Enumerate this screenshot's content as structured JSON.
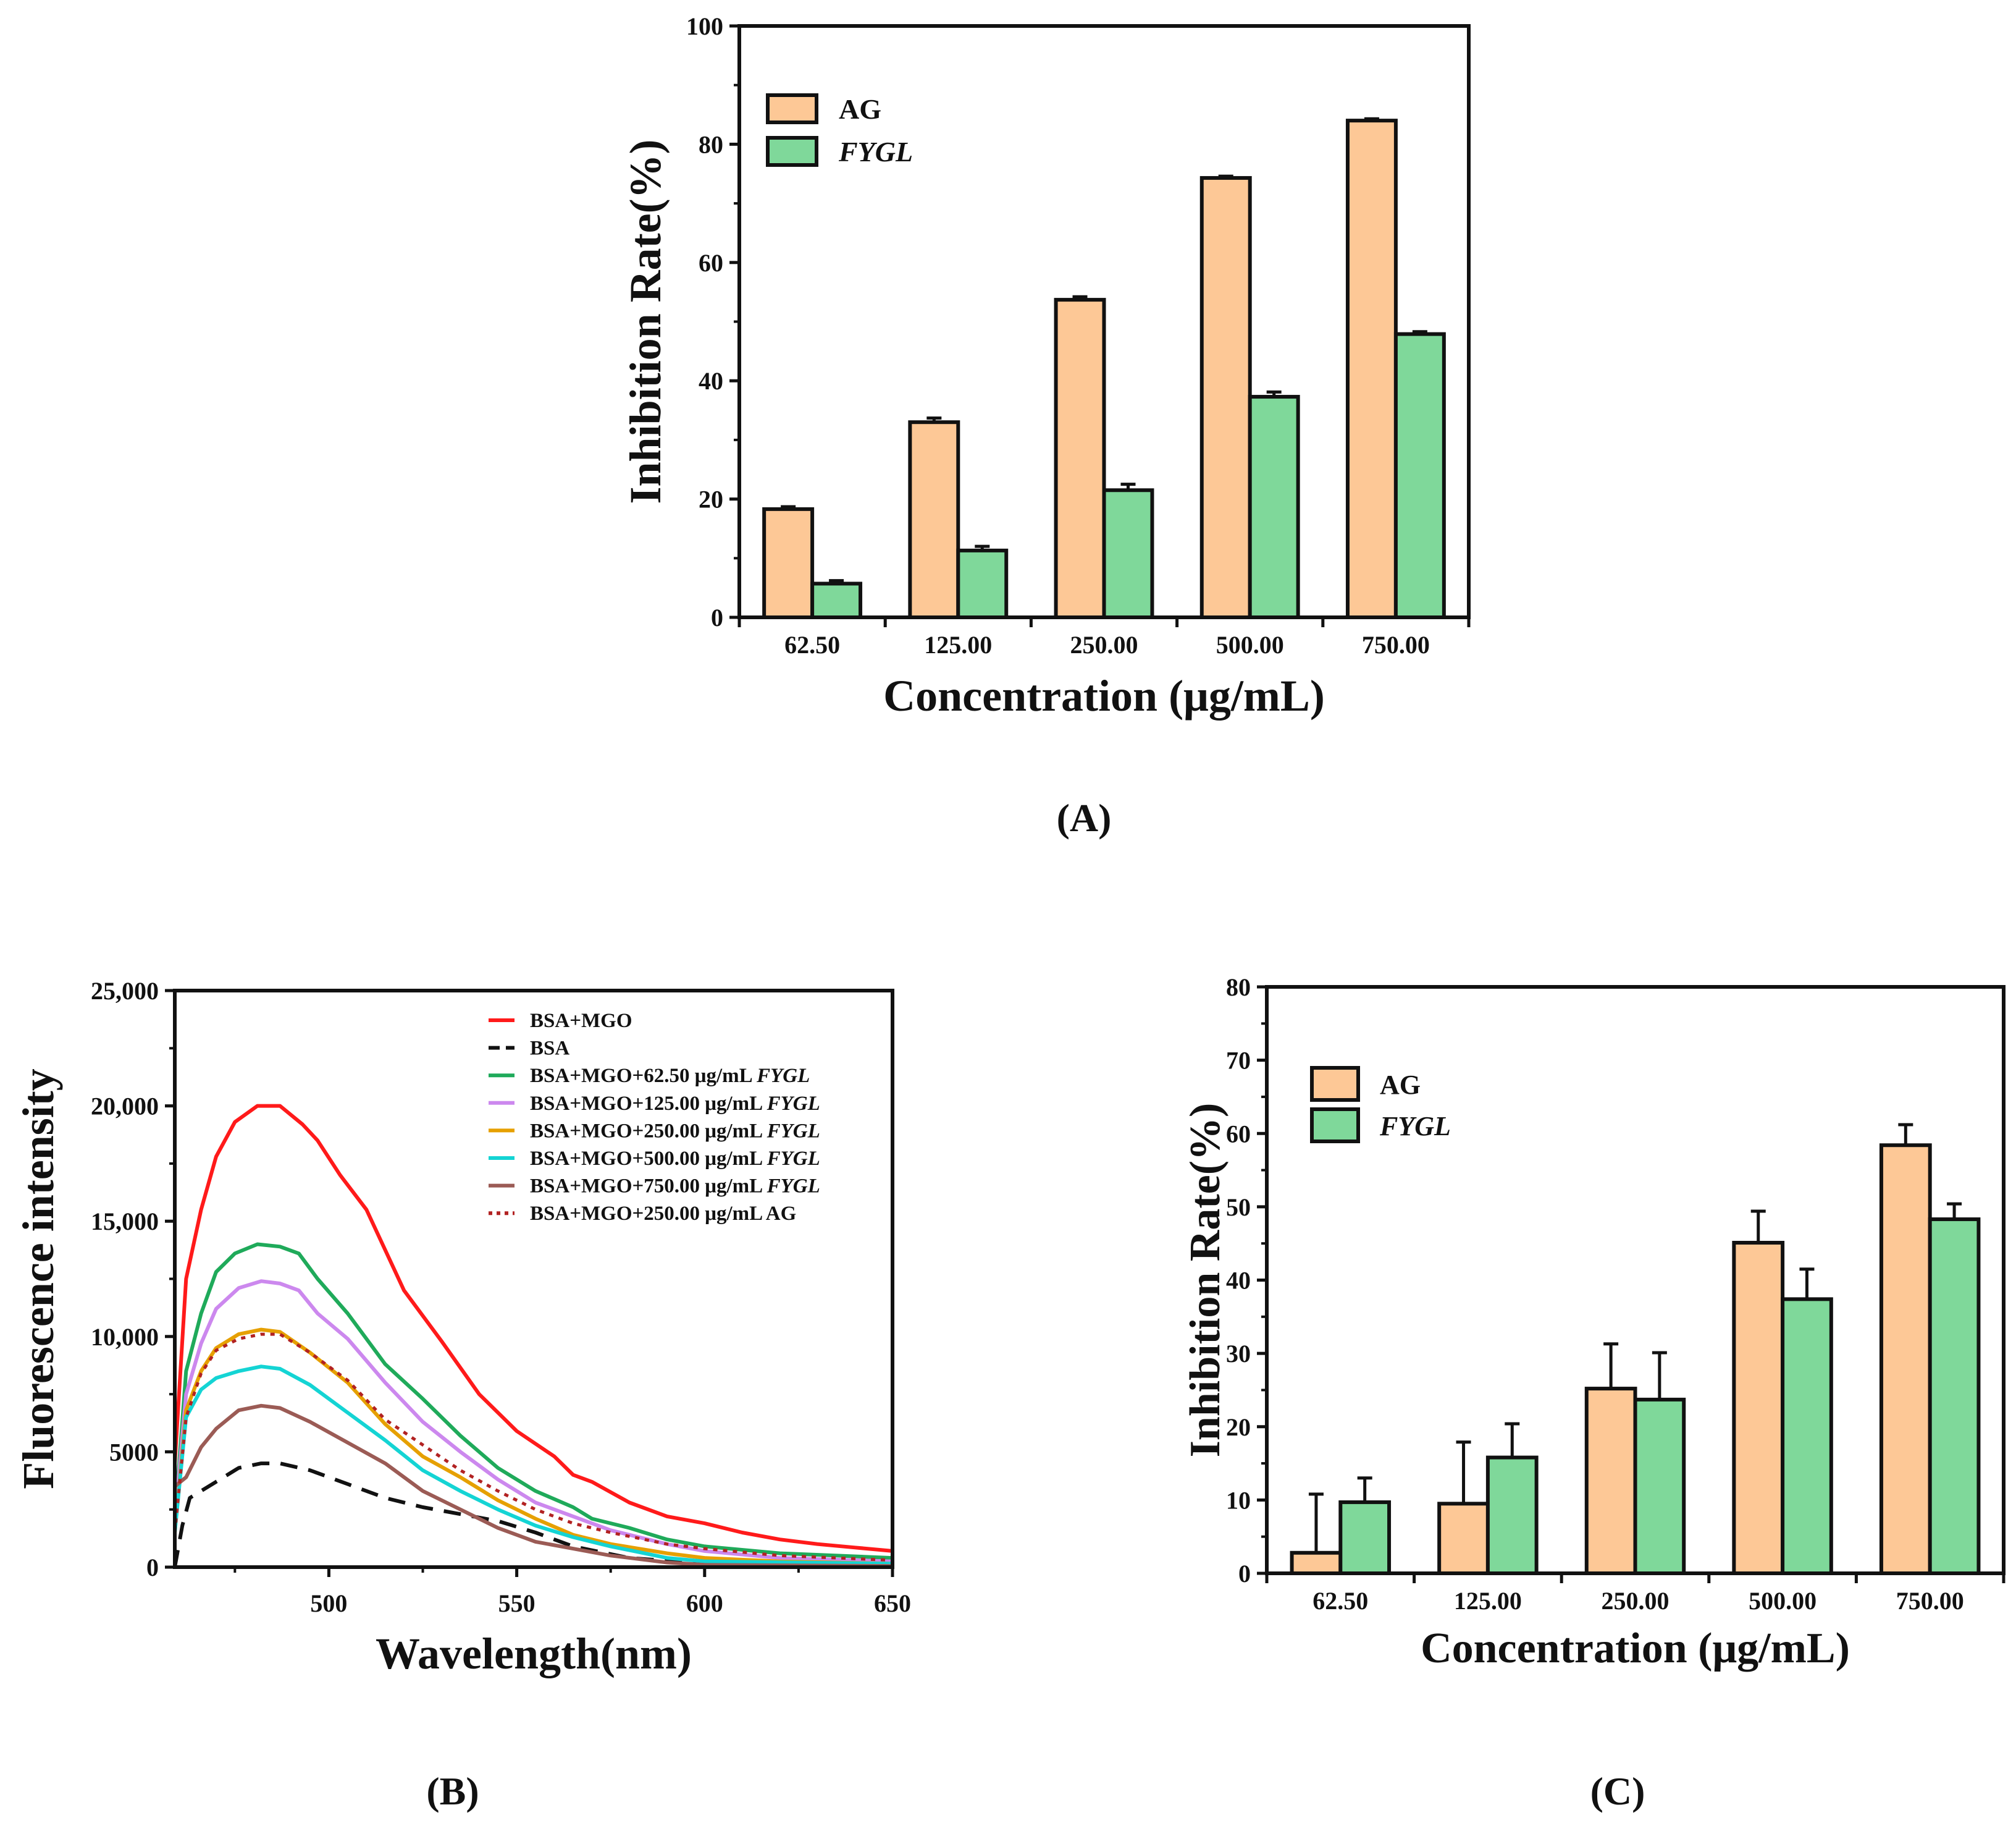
{
  "chart_data": [
    {
      "panel_label": "(A)",
      "type": "bar",
      "categories": [
        "62.50",
        "125.00",
        "250.00",
        "500.00",
        "750.00"
      ],
      "series": [
        {
          "name": "AG",
          "italic": false,
          "color": "#FDC896",
          "values": [
            18.3,
            33.0,
            53.7,
            74.3,
            84.0
          ],
          "errors": [
            0.4,
            0.7,
            0.5,
            0.3,
            0.3
          ]
        },
        {
          "name": "FYGL",
          "italic": true,
          "color": "#7FD89A",
          "values": [
            5.7,
            11.3,
            21.5,
            37.3,
            47.9
          ],
          "errors": [
            0.5,
            0.7,
            1.0,
            0.8,
            0.4
          ]
        }
      ],
      "xlabel": "Concentration (μg/mL)",
      "ylabel": "Inhibition Rate(%)",
      "ylim": [
        0,
        100
      ],
      "yticks": [
        "0",
        "20",
        "40",
        "60",
        "80",
        "100"
      ],
      "legend_position": "top-left"
    },
    {
      "panel_label": "(B)",
      "type": "line",
      "xlabel": "Wavelength(nm)",
      "ylabel": "Fluorescence intensity",
      "xlim": [
        459,
        650
      ],
      "ylim": [
        0,
        25000
      ],
      "xticks": [
        "500",
        "550",
        "600",
        "650"
      ],
      "yticks": [
        "0",
        "5000",
        "10,000",
        "15,000",
        "20,000",
        "25,000"
      ],
      "legend_position": "top-right",
      "series": [
        {
          "name": "BSA+MGO",
          "italic_part": "",
          "color": "#FF1A1A",
          "style": "solid",
          "points": [
            [
              459,
              4500
            ],
            [
              462,
              12500
            ],
            [
              466,
              15500
            ],
            [
              470,
              17800
            ],
            [
              475,
              19300
            ],
            [
              481,
              20000
            ],
            [
              487,
              20000
            ],
            [
              493,
              19200
            ],
            [
              497,
              18500
            ],
            [
              503,
              17000
            ],
            [
              510,
              15500
            ],
            [
              520,
              12000
            ],
            [
              530,
              9800
            ],
            [
              540,
              7500
            ],
            [
              550,
              5900
            ],
            [
              560,
              4800
            ],
            [
              565,
              4000
            ],
            [
              570,
              3700
            ],
            [
              580,
              2800
            ],
            [
              590,
              2200
            ],
            [
              600,
              1900
            ],
            [
              610,
              1500
            ],
            [
              620,
              1200
            ],
            [
              630,
              1000
            ],
            [
              640,
              850
            ],
            [
              650,
              700
            ]
          ]
        },
        {
          "name": "BSA",
          "italic_part": "",
          "color": "#111111",
          "style": "dashed",
          "points": [
            [
              459,
              0
            ],
            [
              461,
              1800
            ],
            [
              463,
              3000
            ],
            [
              470,
              3700
            ],
            [
              476,
              4300
            ],
            [
              482,
              4500
            ],
            [
              487,
              4500
            ],
            [
              495,
              4200
            ],
            [
              505,
              3600
            ],
            [
              515,
              3000
            ],
            [
              525,
              2600
            ],
            [
              535,
              2300
            ],
            [
              545,
              2000
            ],
            [
              555,
              1500
            ],
            [
              565,
              900
            ],
            [
              580,
              400
            ],
            [
              600,
              150
            ],
            [
              650,
              50
            ]
          ]
        },
        {
          "name": "BSA+MGO+62.50 μg/mL ",
          "italic_part": "FYGL",
          "color": "#1FAA5A",
          "style": "solid",
          "points": [
            [
              459,
              2000
            ],
            [
              462,
              8500
            ],
            [
              466,
              11000
            ],
            [
              470,
              12800
            ],
            [
              475,
              13600
            ],
            [
              481,
              14000
            ],
            [
              487,
              13900
            ],
            [
              492,
              13600
            ],
            [
              497,
              12500
            ],
            [
              505,
              11000
            ],
            [
              515,
              8800
            ],
            [
              525,
              7300
            ],
            [
              535,
              5700
            ],
            [
              545,
              4300
            ],
            [
              555,
              3300
            ],
            [
              565,
              2600
            ],
            [
              570,
              2100
            ],
            [
              580,
              1700
            ],
            [
              590,
              1200
            ],
            [
              600,
              900
            ],
            [
              620,
              600
            ],
            [
              650,
              400
            ]
          ]
        },
        {
          "name": "BSA+MGO+125.00 μg/mL ",
          "italic_part": "FYGL",
          "color": "#CC88EE",
          "style": "solid",
          "points": [
            [
              459,
              2000
            ],
            [
              462,
              7500
            ],
            [
              466,
              9700
            ],
            [
              470,
              11200
            ],
            [
              476,
              12100
            ],
            [
              482,
              12400
            ],
            [
              487,
              12300
            ],
            [
              492,
              12000
            ],
            [
              497,
              11000
            ],
            [
              505,
              9900
            ],
            [
              515,
              8000
            ],
            [
              525,
              6300
            ],
            [
              535,
              5000
            ],
            [
              545,
              3800
            ],
            [
              555,
              2800
            ],
            [
              565,
              2200
            ],
            [
              575,
              1600
            ],
            [
              590,
              1000
            ],
            [
              600,
              700
            ],
            [
              620,
              400
            ],
            [
              650,
              250
            ]
          ]
        },
        {
          "name": "BSA+MGO+250.00 μg/mL ",
          "italic_part": "FYGL",
          "color": "#E6A000",
          "style": "solid",
          "points": [
            [
              459,
              1500
            ],
            [
              462,
              6800
            ],
            [
              466,
              8500
            ],
            [
              470,
              9500
            ],
            [
              476,
              10100
            ],
            [
              482,
              10300
            ],
            [
              487,
              10200
            ],
            [
              495,
              9300
            ],
            [
              505,
              8000
            ],
            [
              515,
              6200
            ],
            [
              525,
              4800
            ],
            [
              535,
              3900
            ],
            [
              545,
              2900
            ],
            [
              555,
              2100
            ],
            [
              565,
              1400
            ],
            [
              575,
              1000
            ],
            [
              590,
              600
            ],
            [
              600,
              400
            ],
            [
              620,
              250
            ],
            [
              650,
              150
            ]
          ]
        },
        {
          "name": "BSA+MGO+500.00 μg/mL ",
          "italic_part": "FYGL",
          "color": "#14D4D4",
          "style": "solid",
          "points": [
            [
              459,
              1500
            ],
            [
              462,
              6500
            ],
            [
              466,
              7700
            ],
            [
              470,
              8200
            ],
            [
              476,
              8500
            ],
            [
              482,
              8700
            ],
            [
              487,
              8600
            ],
            [
              495,
              7900
            ],
            [
              505,
              6700
            ],
            [
              515,
              5500
            ],
            [
              525,
              4200
            ],
            [
              535,
              3300
            ],
            [
              545,
              2500
            ],
            [
              555,
              1800
            ],
            [
              565,
              1300
            ],
            [
              575,
              900
            ],
            [
              590,
              400
            ],
            [
              600,
              250
            ],
            [
              650,
              150
            ]
          ]
        },
        {
          "name": "BSA+MGO+750.00 μg/mL ",
          "italic_part": "FYGL",
          "color": "#9B5B55",
          "style": "solid",
          "points": [
            [
              459,
              3500
            ],
            [
              462,
              3900
            ],
            [
              466,
              5200
            ],
            [
              470,
              6000
            ],
            [
              476,
              6800
            ],
            [
              482,
              7000
            ],
            [
              487,
              6900
            ],
            [
              495,
              6300
            ],
            [
              505,
              5400
            ],
            [
              515,
              4500
            ],
            [
              525,
              3300
            ],
            [
              535,
              2500
            ],
            [
              545,
              1700
            ],
            [
              555,
              1100
            ],
            [
              565,
              800
            ],
            [
              575,
              500
            ],
            [
              590,
              200
            ],
            [
              600,
              100
            ],
            [
              650,
              50
            ]
          ]
        },
        {
          "name": "BSA+MGO+250.00 μg/mL AG",
          "italic_part": "",
          "color": "#B22222",
          "style": "dotted",
          "points": [
            [
              459,
              1500
            ],
            [
              462,
              6500
            ],
            [
              466,
              8400
            ],
            [
              470,
              9400
            ],
            [
              476,
              9900
            ],
            [
              482,
              10100
            ],
            [
              487,
              10100
            ],
            [
              495,
              9300
            ],
            [
              505,
              8100
            ],
            [
              515,
              6400
            ],
            [
              525,
              5300
            ],
            [
              535,
              4200
            ],
            [
              545,
              3300
            ],
            [
              555,
              2500
            ],
            [
              565,
              1900
            ],
            [
              575,
              1500
            ],
            [
              590,
              1000
            ],
            [
              600,
              800
            ],
            [
              620,
              500
            ],
            [
              650,
              300
            ]
          ]
        }
      ]
    },
    {
      "panel_label": "(C)",
      "type": "bar",
      "categories": [
        "62.50",
        "125.00",
        "250.00",
        "500.00",
        "750.00"
      ],
      "series": [
        {
          "name": "AG",
          "italic": false,
          "color": "#FDC896",
          "values": [
            2.8,
            9.5,
            25.2,
            45.1,
            58.4
          ],
          "errors": [
            8.0,
            8.4,
            6.1,
            4.3,
            2.8
          ]
        },
        {
          "name": "FYGL",
          "italic": true,
          "color": "#7FD89A",
          "values": [
            9.7,
            15.8,
            23.7,
            37.4,
            48.3
          ],
          "errors": [
            3.3,
            4.6,
            6.4,
            4.1,
            2.1
          ]
        }
      ],
      "xlabel": "Concentration (μg/mL)",
      "ylabel": "Inhibition Rate(%)",
      "ylim": [
        0,
        80
      ],
      "yticks": [
        "0",
        "10",
        "20",
        "30",
        "40",
        "50",
        "60",
        "70",
        "80"
      ],
      "legend_position": "top-left"
    }
  ]
}
